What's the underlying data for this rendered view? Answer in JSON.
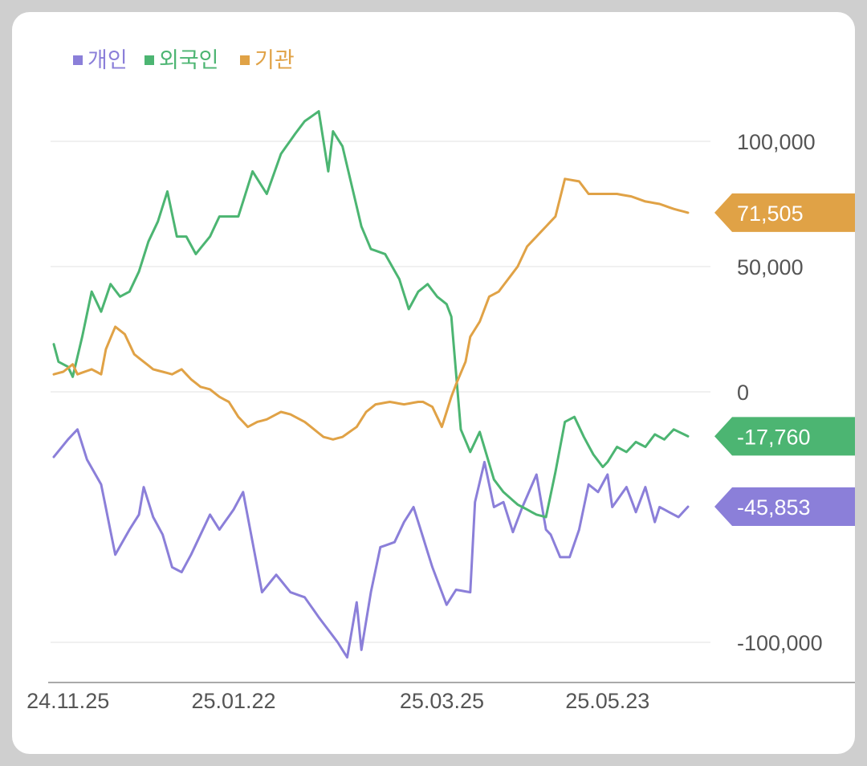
{
  "chart_data": {
    "type": "line",
    "title": "",
    "xlabel": "",
    "ylabel": "",
    "legend_position": "top-left",
    "ylim": [
      -112000,
      118000
    ],
    "grid": true,
    "y_ticks": [
      {
        "value": 100000,
        "label": "100,000"
      },
      {
        "value": 50000,
        "label": "50,000"
      },
      {
        "value": 0,
        "label": "0"
      },
      {
        "value": -100000,
        "label": "-100,000"
      }
    ],
    "x_ticks": [
      {
        "index": 3,
        "label": "24.11.25"
      },
      {
        "index": 38,
        "label": "25.01.22"
      },
      {
        "index": 82,
        "label": "25.03.25"
      },
      {
        "index": 117,
        "label": "25.05.23"
      }
    ],
    "n_points": 135,
    "series": [
      {
        "name": "개인",
        "color": "#8b7fd9",
        "last_label": "-45,853",
        "anchors": [
          [
            0,
            -26000
          ],
          [
            3,
            -19000
          ],
          [
            5,
            -15000
          ],
          [
            7,
            -27000
          ],
          [
            10,
            -37000
          ],
          [
            13,
            -65000
          ],
          [
            16,
            -55000
          ],
          [
            18,
            -49000
          ],
          [
            19,
            -38000
          ],
          [
            21,
            -50000
          ],
          [
            23,
            -57000
          ],
          [
            25,
            -70000
          ],
          [
            27,
            -72000
          ],
          [
            29,
            -65000
          ],
          [
            32,
            -53000
          ],
          [
            33,
            -49000
          ],
          [
            35,
            -55000
          ],
          [
            38,
            -47000
          ],
          [
            40,
            -40000
          ],
          [
            44,
            -80000
          ],
          [
            47,
            -73000
          ],
          [
            50,
            -80000
          ],
          [
            53,
            -82000
          ],
          [
            56,
            -90000
          ],
          [
            60,
            -100000
          ],
          [
            62,
            -106000
          ],
          [
            64,
            -84000
          ],
          [
            65,
            -103000
          ],
          [
            67,
            -80000
          ],
          [
            69,
            -62000
          ],
          [
            72,
            -60000
          ],
          [
            74,
            -52000
          ],
          [
            76,
            -46000
          ],
          [
            80,
            -70000
          ],
          [
            83,
            -85000
          ],
          [
            85,
            -79000
          ],
          [
            88,
            -80000
          ],
          [
            89,
            -44000
          ],
          [
            91,
            -28000
          ],
          [
            93,
            -46000
          ],
          [
            95,
            -44000
          ],
          [
            97,
            -56000
          ],
          [
            99,
            -46000
          ],
          [
            102,
            -33000
          ],
          [
            104,
            -55000
          ],
          [
            105,
            -57000
          ],
          [
            107,
            -66000
          ],
          [
            109,
            -66000
          ],
          [
            111,
            -55000
          ],
          [
            113,
            -37000
          ],
          [
            115,
            -40000
          ],
          [
            117,
            -33000
          ],
          [
            118,
            -46000
          ],
          [
            121,
            -38000
          ],
          [
            123,
            -48000
          ],
          [
            125,
            -38000
          ],
          [
            127,
            -52000
          ],
          [
            128,
            -46000
          ],
          [
            132,
            -50000
          ],
          [
            134,
            -45853
          ]
        ]
      },
      {
        "name": "외국인",
        "color": "#4cb572",
        "last_label": "-17,760",
        "anchors": [
          [
            0,
            19000
          ],
          [
            1,
            12000
          ],
          [
            3,
            10000
          ],
          [
            4,
            6000
          ],
          [
            6,
            22000
          ],
          [
            8,
            40000
          ],
          [
            10,
            32000
          ],
          [
            12,
            43000
          ],
          [
            14,
            38000
          ],
          [
            16,
            40000
          ],
          [
            18,
            48000
          ],
          [
            20,
            60000
          ],
          [
            22,
            68000
          ],
          [
            24,
            80000
          ],
          [
            26,
            62000
          ],
          [
            28,
            62000
          ],
          [
            30,
            55000
          ],
          [
            33,
            62000
          ],
          [
            35,
            70000
          ],
          [
            39,
            70000
          ],
          [
            42,
            88000
          ],
          [
            45,
            79000
          ],
          [
            48,
            95000
          ],
          [
            51,
            103000
          ],
          [
            53,
            108000
          ],
          [
            56,
            112000
          ],
          [
            58,
            88000
          ],
          [
            59,
            104000
          ],
          [
            61,
            98000
          ],
          [
            63,
            82000
          ],
          [
            65,
            66000
          ],
          [
            67,
            57000
          ],
          [
            70,
            55000
          ],
          [
            73,
            45000
          ],
          [
            75,
            33000
          ],
          [
            77,
            40000
          ],
          [
            79,
            43000
          ],
          [
            81,
            38000
          ],
          [
            83,
            35000
          ],
          [
            84,
            30000
          ],
          [
            86,
            -15000
          ],
          [
            88,
            -24000
          ],
          [
            90,
            -16000
          ],
          [
            93,
            -35000
          ],
          [
            95,
            -40000
          ],
          [
            98,
            -45000
          ],
          [
            100,
            -47000
          ],
          [
            102,
            -49000
          ],
          [
            104,
            -50000
          ],
          [
            106,
            -32000
          ],
          [
            108,
            -12000
          ],
          [
            110,
            -10000
          ],
          [
            112,
            -18000
          ],
          [
            114,
            -25000
          ],
          [
            116,
            -30000
          ],
          [
            117,
            -28000
          ],
          [
            119,
            -22000
          ],
          [
            121,
            -24000
          ],
          [
            123,
            -20000
          ],
          [
            125,
            -22000
          ],
          [
            127,
            -17000
          ],
          [
            129,
            -19000
          ],
          [
            131,
            -15000
          ],
          [
            134,
            -17760
          ]
        ]
      },
      {
        "name": "기관",
        "color": "#e0a246",
        "last_label": "71,505",
        "anchors": [
          [
            0,
            7000
          ],
          [
            2,
            8000
          ],
          [
            4,
            11000
          ],
          [
            5,
            7000
          ],
          [
            8,
            9000
          ],
          [
            10,
            7000
          ],
          [
            11,
            17000
          ],
          [
            13,
            26000
          ],
          [
            15,
            23000
          ],
          [
            17,
            15000
          ],
          [
            19,
            12000
          ],
          [
            21,
            9000
          ],
          [
            23,
            8000
          ],
          [
            25,
            7000
          ],
          [
            27,
            9000
          ],
          [
            29,
            5000
          ],
          [
            31,
            2000
          ],
          [
            33,
            1000
          ],
          [
            35,
            -2000
          ],
          [
            37,
            -4000
          ],
          [
            39,
            -10000
          ],
          [
            41,
            -14000
          ],
          [
            43,
            -12000
          ],
          [
            45,
            -11000
          ],
          [
            48,
            -8000
          ],
          [
            50,
            -9000
          ],
          [
            53,
            -12000
          ],
          [
            55,
            -15000
          ],
          [
            57,
            -18000
          ],
          [
            59,
            -19000
          ],
          [
            61,
            -18000
          ],
          [
            64,
            -14000
          ],
          [
            66,
            -8000
          ],
          [
            68,
            -5000
          ],
          [
            71,
            -4000
          ],
          [
            74,
            -5000
          ],
          [
            77,
            -4000
          ],
          [
            78,
            -4000
          ],
          [
            80,
            -6000
          ],
          [
            82,
            -14000
          ],
          [
            84,
            -2000
          ],
          [
            85,
            3000
          ],
          [
            87,
            12000
          ],
          [
            88,
            22000
          ],
          [
            90,
            28000
          ],
          [
            92,
            38000
          ],
          [
            94,
            40000
          ],
          [
            96,
            45000
          ],
          [
            98,
            50000
          ],
          [
            100,
            58000
          ],
          [
            102,
            62000
          ],
          [
            104,
            66000
          ],
          [
            106,
            70000
          ],
          [
            108,
            85000
          ],
          [
            111,
            84000
          ],
          [
            113,
            79000
          ],
          [
            116,
            79000
          ],
          [
            119,
            79000
          ],
          [
            122,
            78000
          ],
          [
            125,
            76000
          ],
          [
            128,
            75000
          ],
          [
            131,
            73000
          ],
          [
            134,
            71505
          ]
        ]
      }
    ]
  }
}
